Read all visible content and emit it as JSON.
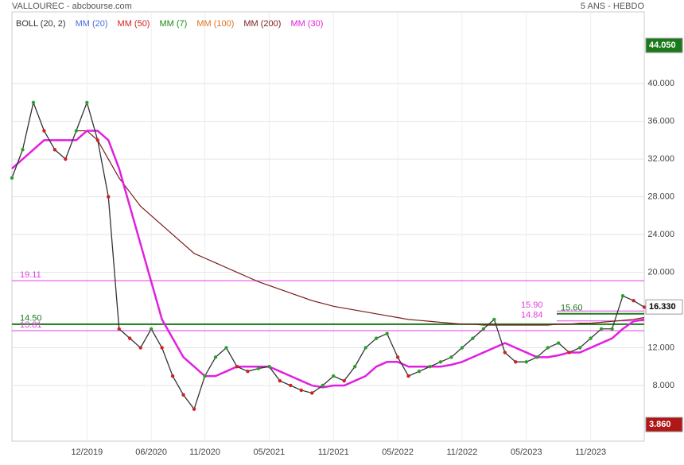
{
  "chart_data": {
    "type": "line",
    "title": "VALLOUREC - abcbourse.com",
    "subtitle": "5 ANS - HEBDO",
    "categories": [
      null,
      null,
      null,
      null,
      null,
      null,
      null,
      "12/2019",
      null,
      null,
      null,
      null,
      null,
      "06/2020",
      null,
      null,
      null,
      null,
      "11/2020",
      null,
      null,
      null,
      null,
      null,
      "05/2021",
      null,
      null,
      null,
      null,
      null,
      "11/2021",
      null,
      null,
      null,
      null,
      null,
      "05/2022",
      null,
      null,
      null,
      null,
      null,
      "11/2022",
      null,
      null,
      null,
      null,
      null,
      "05/2023",
      null,
      null,
      null,
      null,
      null,
      "11/2023",
      null,
      null,
      null,
      null,
      null
    ],
    "price": {
      "color": "#333333",
      "values": [
        30,
        33,
        38,
        35,
        33,
        32,
        35,
        38,
        34,
        28,
        14,
        13,
        12,
        14,
        12,
        9,
        7,
        5.5,
        9,
        11,
        12,
        10,
        9.5,
        9.8,
        10,
        8.5,
        8,
        7.5,
        7.2,
        8,
        9,
        8.5,
        10,
        12,
        13,
        13.5,
        11,
        9,
        9.5,
        10,
        10.5,
        11,
        12,
        13,
        14,
        15,
        11.5,
        10.5,
        10.5,
        11,
        12,
        12.5,
        11.5,
        12,
        13,
        14,
        14,
        17.5,
        17,
        16.3
      ]
    },
    "series": [
      {
        "name": "BOLL (20, 2)",
        "color": "#333333"
      },
      {
        "name": "MM (20)",
        "color": "#4a6ee0"
      },
      {
        "name": "MM (50)",
        "color": "#d42020"
      },
      {
        "name": "MM (7)",
        "color": "#1a8a1a"
      },
      {
        "name": "MM (100)",
        "color": "#e07020"
      },
      {
        "name": "MM (200)",
        "color": "#7a1a1a",
        "values": [
          null,
          null,
          null,
          null,
          null,
          null,
          35,
          35,
          34,
          32,
          30,
          28.5,
          27,
          26,
          25,
          24,
          23,
          22,
          21.5,
          21,
          20.5,
          20,
          19.5,
          19,
          18.6,
          18.2,
          17.8,
          17.4,
          17,
          16.7,
          16.4,
          16.2,
          16,
          15.8,
          15.6,
          15.4,
          15.2,
          15,
          14.9,
          14.8,
          14.7,
          14.6,
          14.5,
          14.5,
          14.4,
          14.4,
          14.4,
          14.4,
          14.4,
          14.4,
          14.4,
          14.5,
          14.5,
          14.6,
          14.6,
          14.7,
          14.8,
          14.9,
          15,
          15.2
        ]
      },
      {
        "name": "MM (30)",
        "color": "#e020e0",
        "values": [
          31,
          32,
          33,
          34,
          34,
          34,
          34,
          35,
          35,
          34,
          31,
          27,
          23,
          19,
          15,
          13,
          11,
          10,
          9,
          9,
          9.5,
          10,
          10,
          10,
          10,
          9.5,
          9,
          8.5,
          8,
          7.8,
          8,
          8,
          8.5,
          9,
          10,
          10.5,
          10.5,
          10,
          10,
          10,
          10,
          10.2,
          10.5,
          11,
          11.5,
          12,
          12.5,
          12,
          11.5,
          11,
          11,
          11.2,
          11.5,
          11.5,
          12,
          12.5,
          13,
          14,
          14.8,
          15
        ]
      }
    ],
    "ylim": [
      2.1,
      47.6
    ],
    "yticks": [
      {
        "value": 8,
        "label": "8.000"
      },
      {
        "value": 12,
        "label": "12.000"
      },
      {
        "value": 20,
        "label": "20.000"
      },
      {
        "value": 24,
        "label": "24.000"
      },
      {
        "value": 28,
        "label": "28.000"
      },
      {
        "value": 32,
        "label": "32.000"
      },
      {
        "value": 36,
        "label": "36.000"
      },
      {
        "value": 40,
        "label": "40.000"
      }
    ],
    "grid": true,
    "levels": [
      {
        "value": 19.11,
        "label": "19.11",
        "color": "#e040e0",
        "side": "left"
      },
      {
        "value": 14.5,
        "label": "14.50",
        "color": "#1a7a1a",
        "side": "left"
      },
      {
        "value": 13.81,
        "label": "13.81",
        "color": "#e040e0",
        "side": "left"
      },
      {
        "value": 15.9,
        "label": "15.90",
        "color": "#e040e0",
        "side": "right"
      },
      {
        "value": 14.84,
        "label": "14.84",
        "color": "#e040e0",
        "side": "right"
      },
      {
        "value": 15.6,
        "label": "15.60",
        "color": "#1a7a1a",
        "side": "right"
      }
    ],
    "badges": [
      {
        "value": 44.05,
        "label": "44.050",
        "color": "#1a7a1a"
      },
      {
        "value": 16.33,
        "label": "16.330",
        "color": "#ffffff"
      },
      {
        "value": 3.86,
        "label": "3.860",
        "color": "#b01818"
      }
    ]
  }
}
